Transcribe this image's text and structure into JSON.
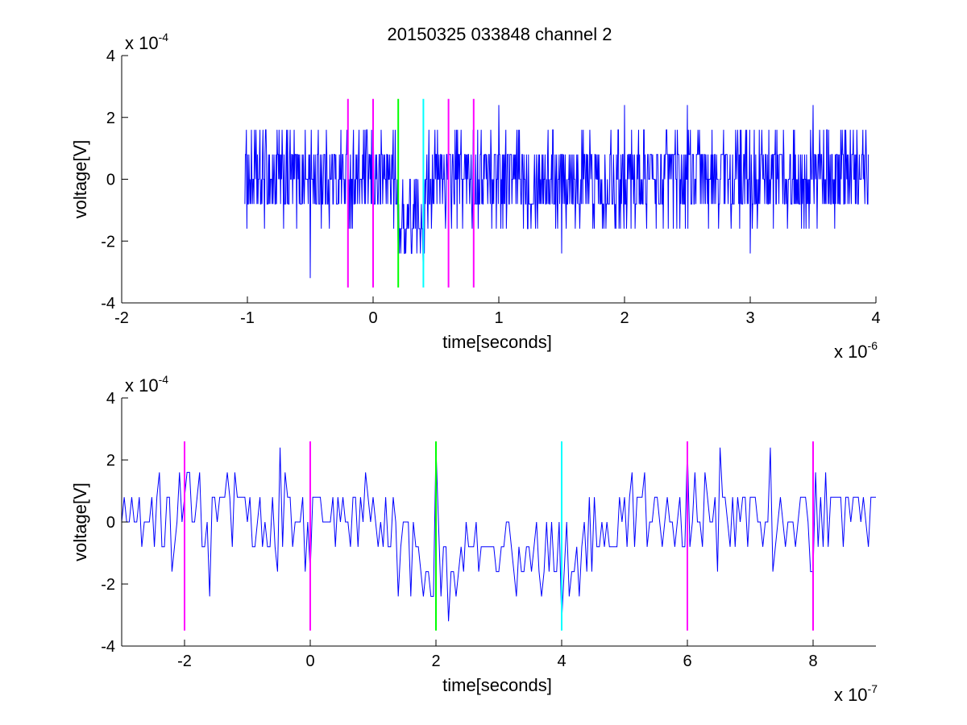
{
  "title": "20150325 033848 channel 2",
  "chart_data": [
    {
      "type": "line",
      "title": "20150325 033848 channel 2",
      "xlabel": "time[seconds]",
      "ylabel": "voltage[V]",
      "x_multiplier": "x 10",
      "x_multiplier_exp": "-6",
      "y_multiplier": "x 10",
      "y_multiplier_exp": "-4",
      "xlim": [
        -2e-06,
        4e-06
      ],
      "ylim": [
        -0.0004,
        0.0004
      ],
      "x_ticks": [
        -2e-06,
        -1e-06,
        0,
        1e-06,
        2e-06,
        3e-06,
        4e-06
      ],
      "x_tick_labels": [
        "-2",
        "-1",
        "0",
        "1",
        "2",
        "3",
        "4"
      ],
      "y_ticks": [
        -0.0004,
        -0.0002,
        0,
        0.0002,
        0.0004
      ],
      "y_tick_labels": [
        "-4",
        "-2",
        "0",
        "2",
        "4"
      ],
      "grid": false,
      "series": [
        {
          "color": "#0000ff",
          "style": "noise",
          "x_start": -1.02e-06,
          "x_end": 3.94e-06,
          "dt": 4e-09,
          "quantum": 8e-05,
          "low_window": [
            1.8e-07,
            4.2e-07
          ],
          "x": [
            -1e-06,
            -5e-07,
            0.0,
            2e-07,
            3e-07,
            4e-07,
            5e-07,
            1e-06,
            1.5e-06,
            2e-06,
            2.5e-06,
            3e-06,
            3.5e-06,
            3.94e-06
          ],
          "y": [
            8e-05,
            -0.00032,
            0.00024,
            -0.00024,
            -0.00016,
            -0.00032,
            8e-05,
            0.00024,
            -0.00024,
            0.00024,
            0.00024,
            -0.00024,
            0.00024,
            8e-05
          ]
        }
      ],
      "markers": [
        {
          "x": -2e-07,
          "y_range": [
            -0.00035,
            0.00026
          ],
          "color": "#ff00ff"
        },
        {
          "x": 0,
          "y_range": [
            -0.00035,
            0.00026
          ],
          "color": "#ff00ff"
        },
        {
          "x": 2e-07,
          "y_range": [
            -0.00035,
            0.00026
          ],
          "color": "#00ff00"
        },
        {
          "x": 4e-07,
          "y_range": [
            -0.00035,
            0.00026
          ],
          "color": "#00ffff"
        },
        {
          "x": 6e-07,
          "y_range": [
            -0.00035,
            0.00026
          ],
          "color": "#ff00ff"
        },
        {
          "x": 8e-07,
          "y_range": [
            -0.00035,
            0.00026
          ],
          "color": "#ff00ff"
        }
      ]
    },
    {
      "type": "line",
      "xlabel": "time[seconds]",
      "ylabel": "voltage[V]",
      "x_multiplier": "x 10",
      "x_multiplier_exp": "-7",
      "y_multiplier": "x 10",
      "y_multiplier_exp": "-4",
      "xlim": [
        -3e-07,
        9e-07
      ],
      "ylim": [
        -0.0004,
        0.0004
      ],
      "x_ticks": [
        -2e-07,
        0,
        2e-07,
        4e-07,
        6e-07,
        8e-07
      ],
      "x_tick_labels": [
        "-2",
        "0",
        "2",
        "4",
        "6",
        "8"
      ],
      "y_ticks": [
        -0.0004,
        -0.0002,
        0,
        0.0002,
        0.0004
      ],
      "y_tick_labels": [
        "-4",
        "-2",
        "0",
        "2",
        "4"
      ],
      "grid": false,
      "series": [
        {
          "color": "#0000ff",
          "style": "noise",
          "x_start": -3e-07,
          "x_end": 9e-07,
          "dt": 4e-09,
          "quantum": 8e-05,
          "low_window": [
            1.4e-07,
            4.4e-07
          ],
          "x": [
            -3e-07,
            -2.1e-07,
            -1.6e-07,
            -5e-08,
            0.0,
            1.4e-07,
            1.8e-07,
            2e-07,
            2.2e-07,
            3e-07,
            4e-07,
            5e-07,
            6e-07,
            6.5e-07,
            7.3e-07,
            8e-07,
            9e-07
          ],
          "y": [
            0.0,
            0.00016,
            -0.00024,
            0.00024,
            -0.00016,
            -0.00024,
            -0.00024,
            0.00024,
            -0.00032,
            -0.00016,
            -0.00032,
            8e-05,
            0.00024,
            0.00024,
            0.00024,
            -0.00016,
            8e-05
          ]
        }
      ],
      "markers": [
        {
          "x": -2e-07,
          "y_range": [
            -0.00035,
            0.00026
          ],
          "color": "#ff00ff"
        },
        {
          "x": 0,
          "y_range": [
            -0.00035,
            0.00026
          ],
          "color": "#ff00ff"
        },
        {
          "x": 2e-07,
          "y_range": [
            -0.00035,
            0.00026
          ],
          "color": "#00ff00"
        },
        {
          "x": 4e-07,
          "y_range": [
            -0.00035,
            0.00026
          ],
          "color": "#00ffff"
        },
        {
          "x": 6e-07,
          "y_range": [
            -0.00035,
            0.00026
          ],
          "color": "#ff00ff"
        },
        {
          "x": 8e-07,
          "y_range": [
            -0.00035,
            0.00026
          ],
          "color": "#ff00ff"
        }
      ]
    }
  ]
}
